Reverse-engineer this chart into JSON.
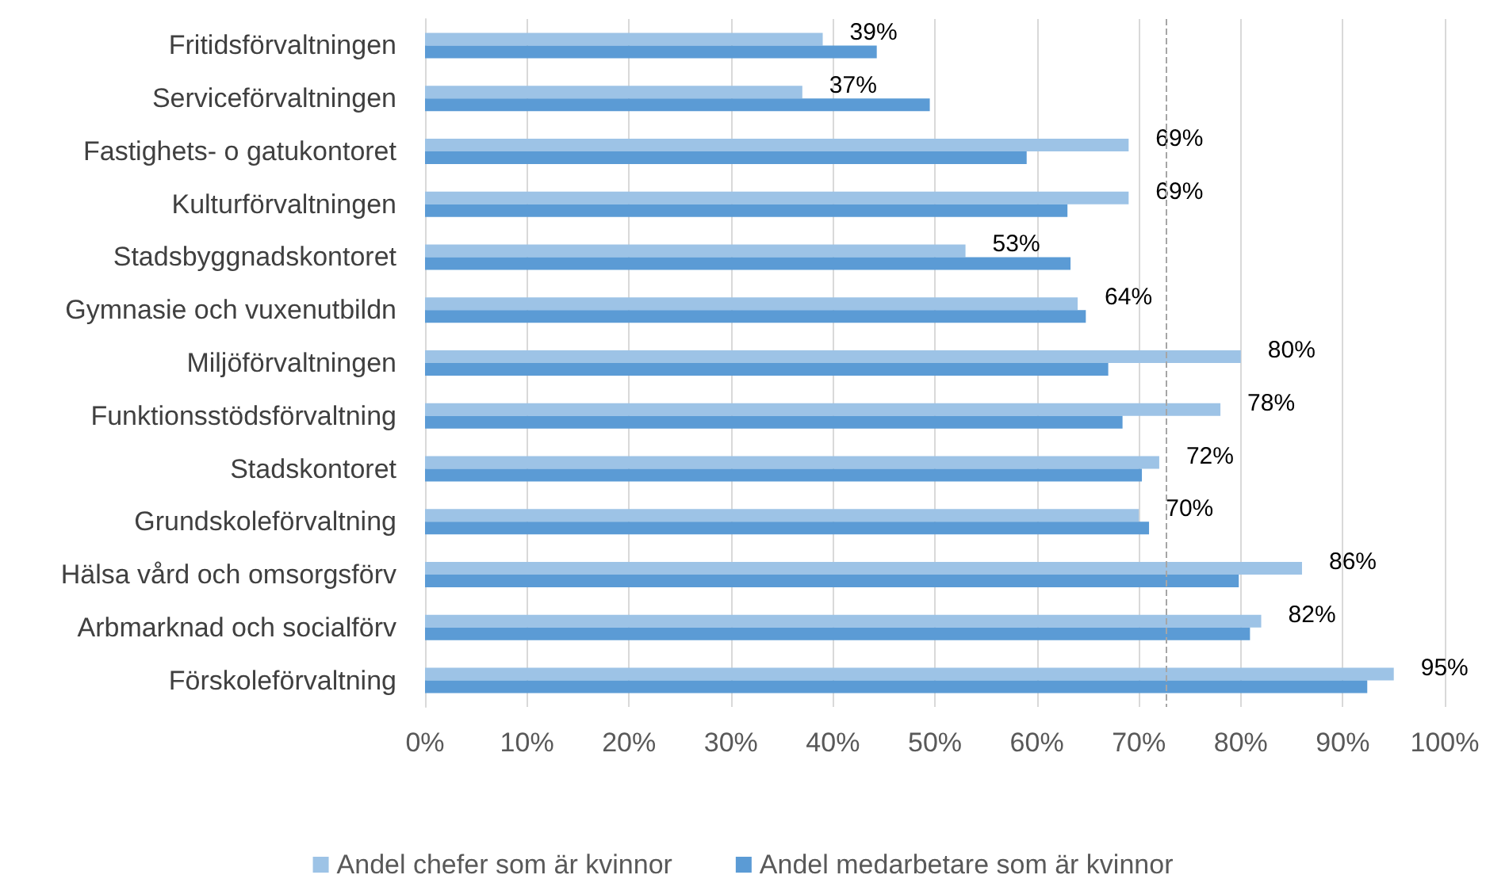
{
  "chart_data": {
    "type": "bar",
    "orientation": "horizontal",
    "categories": [
      "Fritidsförvaltningen",
      "Serviceförvaltningen",
      "Fastighets- o gatukontoret",
      "Kulturförvaltningen",
      "Stadsbyggnadskontoret",
      "Gymnasie och vuxenutbildn",
      "Miljöförvaltningen",
      "Funktionsstödsförvaltning",
      "Stadskontoret",
      "Grundskoleförvaltning",
      "Hälsa vård och omsorgsförv",
      "Arbmarknad och socialförv",
      "Förskoleförvaltning"
    ],
    "series": [
      {
        "name": "Andel chefer som är kvinnor",
        "color": "#9dc3e6",
        "values": [
          39,
          37,
          69,
          69,
          53,
          64,
          80,
          78,
          72,
          70,
          86,
          82,
          95
        ],
        "value_labels": [
          "39%",
          "37%",
          "69%",
          "69%",
          "53%",
          "64%",
          "80%",
          "78%",
          "72%",
          "70%",
          "86%",
          "82%",
          "95%"
        ]
      },
      {
        "name": "Andel medarbetare som är kvinnor",
        "color": "#5b9bd5",
        "values": [
          44.3,
          49.5,
          59,
          63,
          63.3,
          64.8,
          67,
          68.4,
          70.3,
          71,
          79.8,
          80.9,
          92.4
        ]
      }
    ],
    "xlim": [
      0,
      100
    ],
    "xticks": [
      {
        "value": 0,
        "label": "0%"
      },
      {
        "value": 10,
        "label": "10%"
      },
      {
        "value": 20,
        "label": "20%"
      },
      {
        "value": 30,
        "label": "30%"
      },
      {
        "value": 40,
        "label": "40%"
      },
      {
        "value": 50,
        "label": "50%"
      },
      {
        "value": 60,
        "label": "60%"
      },
      {
        "value": 70,
        "label": "70%"
      },
      {
        "value": 80,
        "label": "80%"
      },
      {
        "value": 90,
        "label": "90%"
      },
      {
        "value": 100,
        "label": "100%"
      }
    ],
    "ref_lines": [
      {
        "axis": "x",
        "value": 72.6,
        "color": "#a6a6a6",
        "line_style": "dashed"
      }
    ],
    "grid": "x",
    "legend": "bottom"
  }
}
